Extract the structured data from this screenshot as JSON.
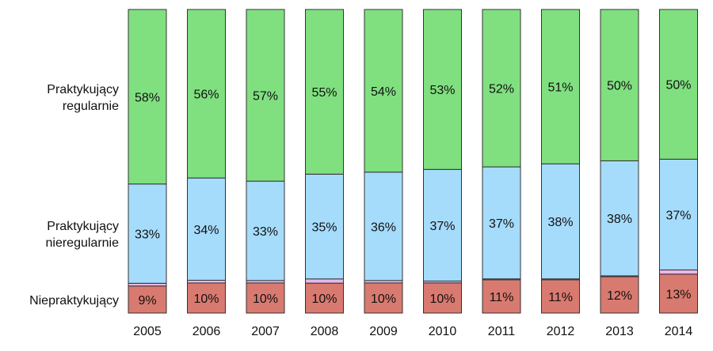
{
  "chart_data": {
    "type": "bar",
    "stacked": true,
    "normalized_to_100": true,
    "categories": [
      "2005",
      "2006",
      "2007",
      "2008",
      "2009",
      "2010",
      "2011",
      "2012",
      "2013",
      "2014"
    ],
    "series": [
      {
        "name": "Niepraktykujący",
        "color": "#d97a70",
        "values": [
          9,
          10,
          10,
          10,
          10,
          10,
          11,
          11,
          12,
          13
        ],
        "labels": [
          "9%",
          "10%",
          "10%",
          "10%",
          "10%",
          "10%",
          "11%",
          "11%",
          "12%",
          "13%"
        ]
      },
      {
        "name": "Unlabeled thin segment",
        "color": "#e8b8e8",
        "values": [
          0.9,
          0.9,
          0.8,
          1.4,
          0.8,
          0.6,
          0.3,
          0.3,
          0.3,
          1.4
        ]
      },
      {
        "name": "Praktykujący nieregularnie",
        "color": "#a6dcfb",
        "values": [
          33,
          34,
          33,
          35,
          36,
          37,
          37,
          38,
          38,
          37
        ],
        "labels": [
          "33%",
          "34%",
          "33%",
          "35%",
          "36%",
          "37%",
          "37%",
          "38%",
          "38%",
          "37%"
        ]
      },
      {
        "name": "Praktykujący regularnie",
        "color": "#80e080",
        "values": [
          58,
          56,
          57,
          55,
          54,
          53,
          52,
          51,
          50,
          50
        ],
        "labels": [
          "58%",
          "56%",
          "57%",
          "55%",
          "54%",
          "53%",
          "52%",
          "51%",
          "50%",
          "50%"
        ]
      }
    ],
    "legend": {
      "placement": "left",
      "entries": [
        {
          "lines": [
            "Praktykujący",
            "regularnie"
          ],
          "series": "Praktykujący regularnie"
        },
        {
          "lines": [
            "Praktykujący",
            "nieregularnie"
          ],
          "series": "Praktykujący nieregularnie"
        },
        {
          "lines": [
            "Niepraktykujący"
          ],
          "series": "Niepraktykujący"
        }
      ]
    },
    "grid": false
  }
}
